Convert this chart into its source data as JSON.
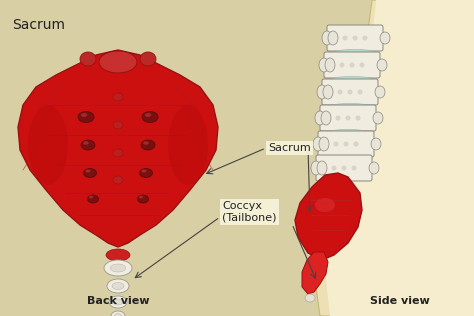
{
  "background_color": "#d9cfa4",
  "title": "Sacrum",
  "title_fontsize": 10,
  "label_sacrum": "Sacrum",
  "label_coccyx": "Coccyx\n(Tailbone)",
  "label_back_view": "Back view",
  "label_side_view": "Side view",
  "label_color": "#222222",
  "label_fontsize": 7.5,
  "red_color": "#cc1010",
  "red_dark": "#991010",
  "red_mid": "#bb2020",
  "white_bone": "#f0ede0",
  "bone_gray": "#d0cfc0",
  "outline_color": "#444444",
  "skin_light": "#ede0b8",
  "skin_mid": "#d4c68e"
}
